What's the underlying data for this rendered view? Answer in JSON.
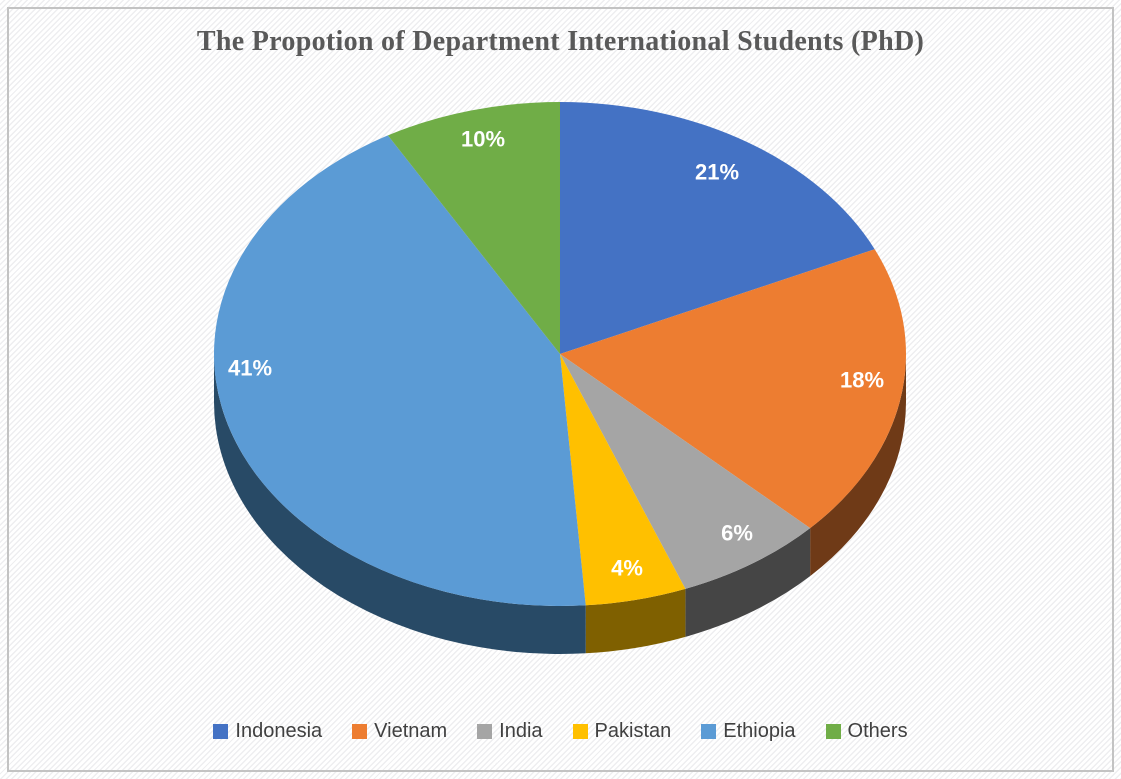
{
  "title": "The Propotion of Department International Students (PhD)",
  "chart_data": {
    "type": "pie",
    "style": "3d",
    "title": "The Propotion of Department International Students (PhD)",
    "unit": "percent",
    "categories": [
      "Indonesia",
      "Vietnam",
      "India",
      "Pakistan",
      "Ethiopia",
      "Others"
    ],
    "values": [
      21,
      18,
      6,
      4,
      41,
      10
    ],
    "data_labels": [
      "21%",
      "18%",
      "6%",
      "4%",
      "41%",
      "10%"
    ],
    "colors": [
      "#4472c4",
      "#ed7d31",
      "#a5a5a5",
      "#ffc000",
      "#5b9bd5",
      "#70ad47"
    ],
    "side_colors": [
      "#2a4a7a",
      "#6f3a17",
      "#454545",
      "#7f6000",
      "#284a66",
      "#436628"
    ],
    "label_color": "#ffffff",
    "legend_position": "bottom",
    "start_angle_deg": 0,
    "direction": "clockwise"
  },
  "style": {
    "background": "#ffffff",
    "stripe": "#eeeef0",
    "frame_border": "#c3c3c3",
    "title_color": "#595959",
    "legend_text_color": "#404040"
  }
}
